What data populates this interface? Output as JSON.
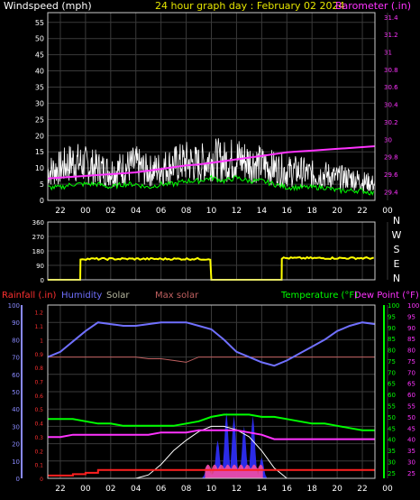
{
  "header": {
    "windspeed_label": "Windspeed (mph)",
    "title": "24 hour graph day : February 02 2024",
    "barometer_label": "Barometer (.in)"
  },
  "colors": {
    "background": "#000000",
    "grid": "#3a3a3a",
    "axis_text_white": "#ffffff",
    "title_yellow": "#e6e600",
    "barometer": "#ff33ff",
    "wind_speed": "#ffffff",
    "wind_avg": "#00ff00",
    "wind_direction": "#ffff00",
    "rain": "#ff2020",
    "humidity": "#7070ff",
    "solar": "#ffffff",
    "max_solar": "#c06060",
    "temperature": "#00ff00",
    "dew_point": "#ff33ff",
    "uv": "#3030ff",
    "uv_highlight": "#ff4fa0",
    "red_text": "#ff3030",
    "left_scale_blue": "#8a8aff"
  },
  "chart_data": [
    {
      "type": "line",
      "name": "wind_and_barometer",
      "x_tick_labels": [
        "22",
        "00",
        "02",
        "04",
        "06",
        "08",
        "10",
        "12",
        "14",
        "16",
        "18",
        "20",
        "22",
        "00"
      ],
      "y_left_ticks": [
        "0",
        "5",
        "10",
        "15",
        "20",
        "25",
        "30",
        "35",
        "40",
        "45",
        "50",
        "55"
      ],
      "y_right_ticks": [
        "29.4",
        "29.6",
        "29.8",
        "30",
        "30.2",
        "30.4",
        "30.6",
        "30.8",
        "31",
        "31.2",
        "31.4"
      ],
      "ylim_left": [
        0,
        58
      ],
      "ylim_right": [
        29.3,
        31.45
      ],
      "hours": [
        22,
        23,
        0,
        1,
        2,
        3,
        4,
        5,
        6,
        7,
        8,
        9,
        10,
        11,
        12,
        13,
        14,
        15,
        16,
        17,
        18,
        19,
        20,
        21,
        22,
        23,
        24
      ],
      "series": [
        {
          "name": "Windspeed (mph)",
          "axis": "left",
          "values": [
            9,
            10,
            12,
            11,
            10,
            9,
            10,
            11,
            9,
            10,
            11,
            12,
            11,
            13,
            12,
            13,
            12,
            11,
            10,
            9,
            9,
            8,
            8,
            7,
            7,
            6,
            5
          ]
        },
        {
          "name": "average",
          "axis": "left",
          "values": [
            4,
            4,
            5,
            5,
            5,
            4,
            5,
            5,
            4,
            5,
            5,
            6,
            6,
            7,
            6,
            7,
            6,
            6,
            5,
            4,
            4,
            4,
            4,
            3,
            3,
            3,
            2
          ]
        },
        {
          "name": "Barometer (.in)",
          "axis": "right",
          "values": [
            29.55,
            29.56,
            29.57,
            29.58,
            29.59,
            29.6,
            29.61,
            29.62,
            29.64,
            29.66,
            29.68,
            29.7,
            29.71,
            29.73,
            29.75,
            29.77,
            29.79,
            29.81,
            29.83,
            29.85,
            29.86,
            29.87,
            29.88,
            29.89,
            29.9,
            29.91,
            29.92
          ]
        }
      ]
    },
    {
      "type": "line",
      "name": "wind_direction",
      "y_ticks": [
        "0",
        "90",
        "180",
        "270",
        "360"
      ],
      "ylim": [
        0,
        360
      ],
      "compass_labels": [
        "N",
        "W",
        "S",
        "E",
        "N"
      ],
      "x_tick_labels": [
        "22",
        "00",
        "02",
        "04",
        "06",
        "08",
        "10",
        "12",
        "14",
        "16",
        "18",
        "20",
        "22",
        "00"
      ],
      "segments": [
        {
          "from_hour": 22,
          "to_hour": 0.6,
          "value": 0
        },
        {
          "from_hour": 0.6,
          "to_hour": 11.0,
          "value": 130
        },
        {
          "from_hour": 11.0,
          "to_hour": 16.6,
          "value": 0
        },
        {
          "from_hour": 16.6,
          "to_hour": 24,
          "value": 135
        }
      ]
    },
    {
      "type": "line",
      "name": "temperature_humidity",
      "labels": {
        "rainfall": "Rainfall (.in)",
        "humidity": "Humidity",
        "solar": "Solar",
        "max_solar": "Max solar",
        "temperature": "Temperature (°F)",
        "dew_point": "Dew Point (°F)"
      },
      "x_tick_labels": [
        "22",
        "00",
        "02",
        "04",
        "06",
        "08",
        "10",
        "12",
        "14",
        "16",
        "18",
        "20",
        "22",
        "00"
      ],
      "y_humidity_ticks": [
        "0",
        "10",
        "20",
        "30",
        "40",
        "50",
        "60",
        "70",
        "80",
        "90",
        "100"
      ],
      "y_rain_ticks": [
        "0",
        "0.1",
        "0.2",
        "0.3",
        "0.4",
        "0.5",
        "0.6",
        "0.7",
        "0.8",
        "0.9",
        "1",
        "1.1",
        "1.2"
      ],
      "y_temp_ticks": [
        "25",
        "30",
        "35",
        "40",
        "45",
        "50",
        "55",
        "60",
        "65",
        "70",
        "75",
        "80",
        "85",
        "90",
        "95",
        "100"
      ],
      "ylim_humidity": [
        0,
        100
      ],
      "ylim_rain": [
        0,
        1.25
      ],
      "ylim_temp": [
        22.5,
        100
      ],
      "hours": [
        22,
        23,
        0,
        1,
        2,
        3,
        4,
        5,
        6,
        7,
        8,
        9,
        10,
        11,
        12,
        13,
        14,
        15,
        16,
        17,
        18,
        19,
        20,
        21,
        22,
        23,
        24
      ],
      "series": [
        {
          "name": "Humidity",
          "axis": "humidity",
          "values": [
            70,
            73,
            79,
            85,
            90,
            89,
            88,
            88,
            89,
            90,
            90,
            90,
            88,
            86,
            80,
            73,
            70,
            67,
            65,
            68,
            72,
            76,
            80,
            85,
            88,
            90,
            89
          ]
        },
        {
          "name": "Max solar",
          "axis": "humidity",
          "values": [
            70,
            70,
            70,
            70,
            70,
            70,
            70,
            70,
            69,
            69,
            68,
            67,
            70,
            70,
            70,
            70,
            70,
            70,
            70,
            70,
            70,
            70,
            70,
            70,
            70,
            70,
            70
          ]
        },
        {
          "name": "Temperature (°F)",
          "axis": "temp",
          "values": [
            49,
            49,
            49,
            48,
            47,
            47,
            46,
            46,
            46,
            46,
            46,
            47,
            48,
            50,
            51,
            51,
            51,
            50,
            50,
            49,
            48,
            47,
            47,
            46,
            45,
            44,
            44
          ]
        },
        {
          "name": "Dew Point (°F)",
          "axis": "temp",
          "values": [
            41,
            41,
            42,
            42,
            42,
            42,
            42,
            42,
            42,
            43,
            43,
            43,
            44,
            44,
            44,
            44,
            43,
            42,
            40,
            40,
            40,
            40,
            40,
            40,
            40,
            40,
            40
          ]
        },
        {
          "name": "Solar",
          "axis": "humidity",
          "values": [
            0,
            0,
            0,
            0,
            0,
            0,
            0,
            0,
            2,
            8,
            16,
            22,
            27,
            30,
            30,
            28,
            24,
            16,
            6,
            0,
            0,
            0,
            0,
            0,
            0,
            0,
            0
          ]
        },
        {
          "name": "Rainfall (.in)",
          "axis": "rain",
          "values": [
            0.02,
            0.02,
            0.03,
            0.04,
            0.06,
            0.06,
            0.06,
            0.06,
            0.06,
            0.06,
            0.06,
            0.06,
            0.06,
            0.06,
            0.06,
            0.06,
            0.06,
            0.06,
            0.06,
            0.06,
            0.06,
            0.06,
            0.06,
            0.06,
            0.06,
            0.06,
            0.06
          ]
        }
      ],
      "uv_peaks_humidity_units": [
        {
          "hour": 10.7,
          "value": 8
        },
        {
          "hour": 11.5,
          "value": 22
        },
        {
          "hour": 12.2,
          "value": 38
        },
        {
          "hour": 12.8,
          "value": 36
        },
        {
          "hour": 13.6,
          "value": 30
        },
        {
          "hour": 14.3,
          "value": 36
        },
        {
          "hour": 15.0,
          "value": 12
        }
      ]
    }
  ]
}
